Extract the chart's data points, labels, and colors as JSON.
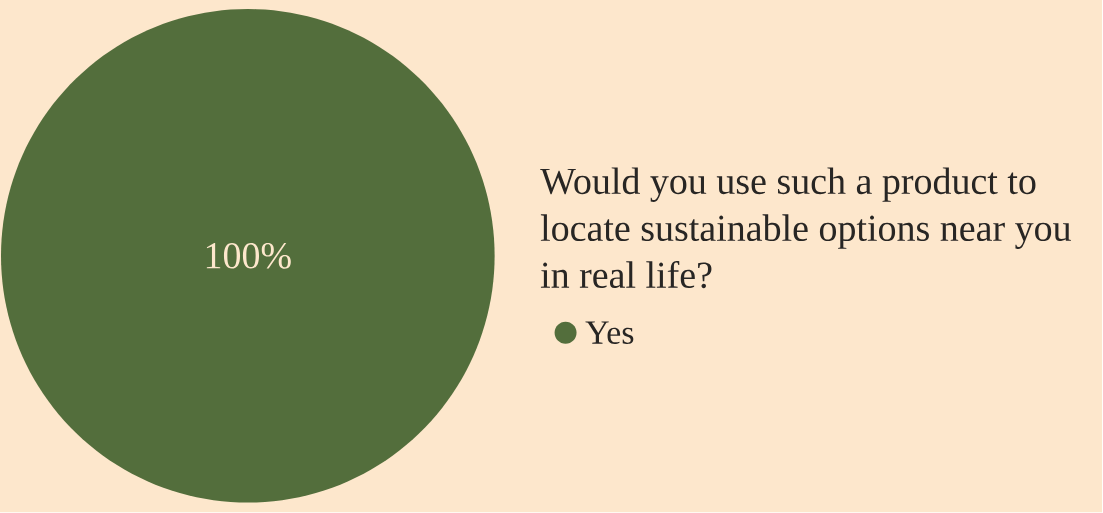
{
  "chart_data": {
    "type": "pie",
    "title": "Would you use such a product to locate sustainable options near you in real life?",
    "categories": [
      "Yes"
    ],
    "values": [
      100
    ],
    "colors": [
      "#536e3c"
    ],
    "value_labels": [
      "100%"
    ],
    "legend": "right"
  }
}
